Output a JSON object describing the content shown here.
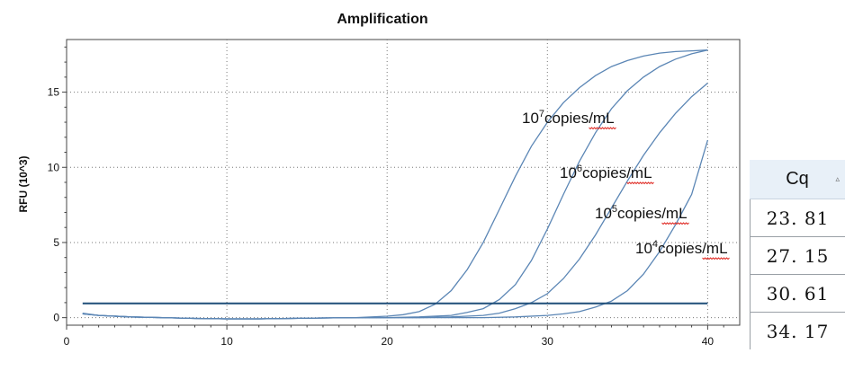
{
  "chart_data": {
    "type": "line",
    "title": "Amplification",
    "xlabel": "",
    "ylabel": "RFU (10^3)",
    "xlim": [
      0,
      42
    ],
    "ylim": [
      -0.5,
      18.5
    ],
    "xticks": [
      0,
      10,
      20,
      30,
      40
    ],
    "yticks": [
      0,
      5,
      10,
      15
    ],
    "grid": true,
    "threshold": 0.95,
    "series": [
      {
        "label_base": "10",
        "label_exp": "7",
        "label_unit": "copies/mL",
        "x": [
          1,
          2,
          4,
          6,
          8,
          10,
          12,
          14,
          16,
          18,
          20,
          21,
          22,
          23,
          24,
          25,
          26,
          27,
          28,
          29,
          30,
          31,
          32,
          33,
          34,
          35,
          36,
          37,
          38,
          39,
          40
        ],
        "y": [
          0.25,
          0.15,
          0.05,
          0.0,
          -0.05,
          -0.08,
          -0.08,
          -0.05,
          -0.02,
          0.0,
          0.1,
          0.2,
          0.4,
          0.9,
          1.8,
          3.2,
          5.0,
          7.2,
          9.4,
          11.4,
          13.0,
          14.3,
          15.3,
          16.1,
          16.7,
          17.1,
          17.4,
          17.6,
          17.7,
          17.75,
          17.8
        ]
      },
      {
        "label_base": "10",
        "label_exp": "6",
        "label_unit": "copies/mL",
        "x": [
          1,
          2,
          4,
          6,
          8,
          10,
          12,
          14,
          16,
          18,
          20,
          22,
          24,
          25,
          26,
          27,
          28,
          29,
          30,
          31,
          32,
          33,
          34,
          35,
          36,
          37,
          38,
          39,
          40
        ],
        "y": [
          0.25,
          0.15,
          0.05,
          0.0,
          -0.05,
          -0.08,
          -0.08,
          -0.05,
          -0.02,
          0.0,
          0.0,
          0.05,
          0.15,
          0.35,
          0.6,
          1.2,
          2.2,
          3.8,
          5.9,
          8.2,
          10.4,
          12.3,
          13.9,
          15.1,
          16.0,
          16.7,
          17.2,
          17.55,
          17.8
        ]
      },
      {
        "label_base": "10",
        "label_exp": "5",
        "label_unit": "copies/mL",
        "x": [
          1,
          2,
          4,
          6,
          8,
          10,
          12,
          14,
          16,
          18,
          20,
          22,
          24,
          26,
          27,
          28,
          29,
          30,
          31,
          32,
          33,
          34,
          35,
          36,
          37,
          38,
          39,
          40
        ],
        "y": [
          0.25,
          0.15,
          0.05,
          0.0,
          -0.05,
          -0.08,
          -0.08,
          -0.05,
          -0.02,
          0.0,
          0.0,
          0.0,
          0.05,
          0.15,
          0.3,
          0.6,
          1.0,
          1.6,
          2.6,
          3.9,
          5.5,
          7.3,
          9.1,
          10.8,
          12.3,
          13.6,
          14.7,
          15.6
        ]
      },
      {
        "label_base": "10",
        "label_exp": "4",
        "label_unit": "copies/mL",
        "x": [
          1,
          2,
          4,
          6,
          8,
          10,
          12,
          14,
          16,
          18,
          20,
          22,
          24,
          26,
          28,
          30,
          31,
          32,
          33,
          34,
          35,
          36,
          37,
          38,
          39,
          40
        ],
        "y": [
          0.3,
          0.15,
          0.05,
          0.0,
          -0.05,
          -0.08,
          -0.08,
          -0.05,
          -0.02,
          0.0,
          0.0,
          0.0,
          0.0,
          0.0,
          0.05,
          0.15,
          0.25,
          0.4,
          0.7,
          1.1,
          1.8,
          2.9,
          4.4,
          6.2,
          8.2,
          11.8
        ]
      }
    ]
  },
  "cq_table": {
    "header": "Cq",
    "sort_icon": "▵",
    "values": [
      "23. 81",
      "27. 15",
      "30. 61",
      "34. 17"
    ]
  }
}
